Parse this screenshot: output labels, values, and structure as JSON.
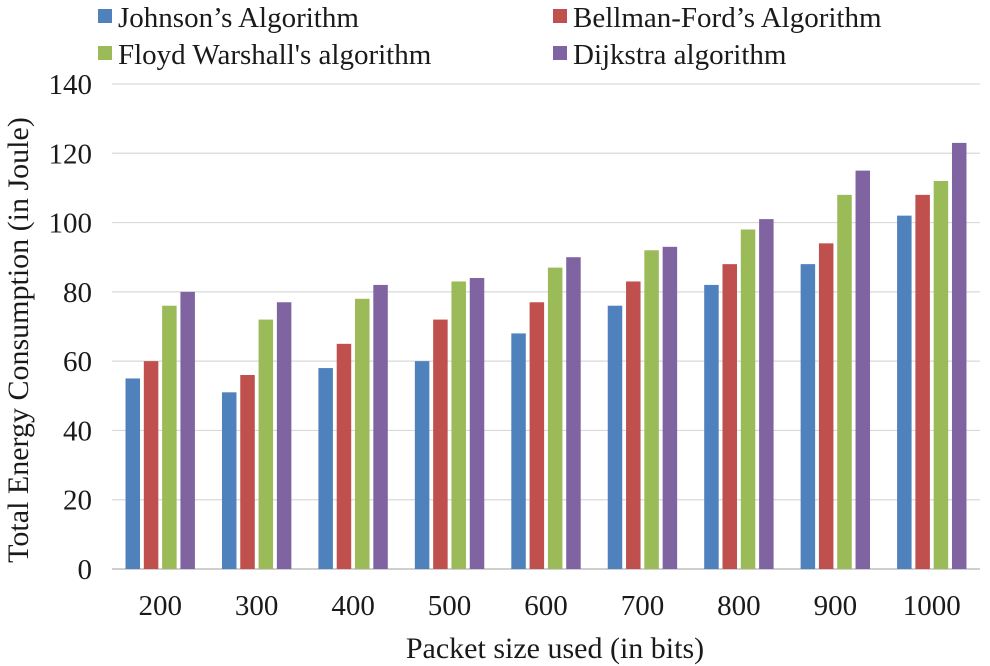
{
  "chart_data": {
    "type": "bar",
    "title": "",
    "xlabel": "Packet size used (in bits)",
    "ylabel": "Total Energy Consumption (in Joule)",
    "ylim": [
      0,
      140
    ],
    "yticks": [
      "0",
      "20",
      "40",
      "60",
      "80",
      "100",
      "120",
      "140"
    ],
    "ytick_values": [
      0,
      20,
      40,
      60,
      80,
      100,
      120,
      140
    ],
    "grid": true,
    "legend_position": "top",
    "categories": [
      "200",
      "300",
      "400",
      "500",
      "600",
      "700",
      "800",
      "900",
      "1000"
    ],
    "series": [
      {
        "name": "Johnson’s Algorithm",
        "color": "#4f81bd",
        "values": [
          55,
          51,
          58,
          60,
          68,
          76,
          82,
          88,
          102
        ]
      },
      {
        "name": "Bellman-Ford’s Algorithm",
        "color": "#c0504d",
        "values": [
          60,
          56,
          65,
          72,
          77,
          83,
          88,
          94,
          108
        ]
      },
      {
        "name": "Floyd Warshall's algorithm",
        "color": "#9bbb59",
        "values": [
          76,
          72,
          78,
          83,
          87,
          92,
          98,
          108,
          112
        ]
      },
      {
        "name": "Dijkstra algorithm",
        "color": "#8064a2",
        "values": [
          80,
          77,
          82,
          84,
          90,
          93,
          101,
          115,
          123
        ]
      }
    ]
  }
}
